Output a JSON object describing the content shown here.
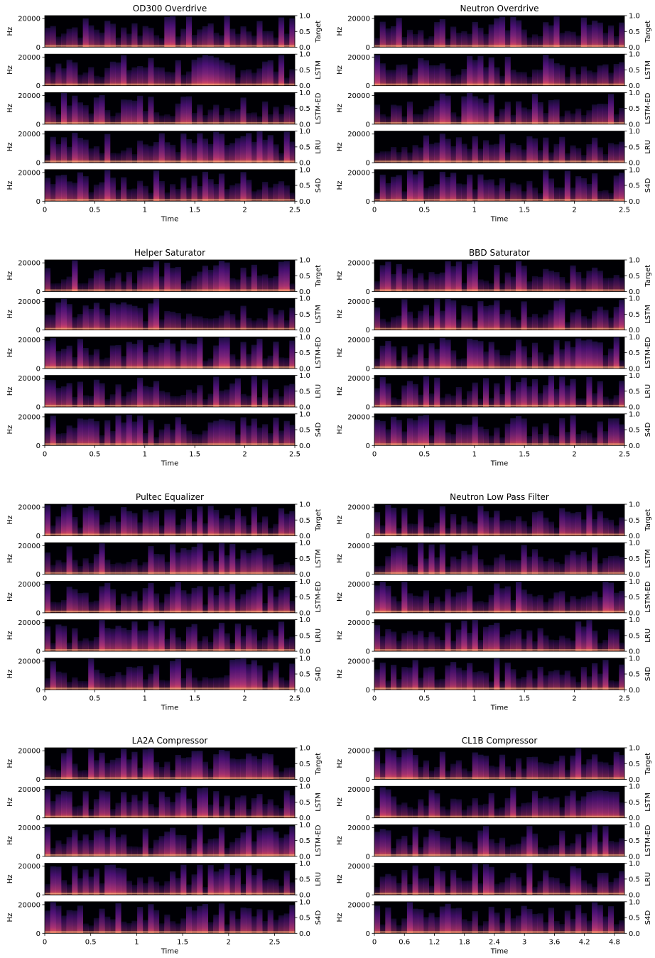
{
  "figure": {
    "row_labels": [
      "Target",
      "LSTM",
      "LSTM-ED",
      "LRU",
      "S4D"
    ],
    "freq_ticks": [
      "0",
      "20000"
    ],
    "freq_label": "Hz",
    "right_ticks": [
      "0.0",
      "0.5",
      "1.0"
    ],
    "xlabel": "Time",
    "colormap": [
      "#000004",
      "#1c1044",
      "#4f127b",
      "#812581",
      "#b5367a",
      "#e55064",
      "#fb8761",
      "#fec287",
      "#fcfdbf"
    ]
  },
  "chart_data": [
    {
      "type": "heatmap",
      "title": "OD300 Overdrive",
      "xlabel": "Time",
      "ylabel": "Hz",
      "xlim": [
        0,
        2.5
      ],
      "xticks": [
        "0",
        "0.5",
        "1",
        "1.5",
        "2",
        "2.5"
      ],
      "ylim": [
        0,
        22050
      ],
      "yticks": [
        0,
        20000
      ],
      "series": [
        {
          "name": "Target"
        },
        {
          "name": "LSTM"
        },
        {
          "name": "LSTM-ED"
        },
        {
          "name": "LRU"
        },
        {
          "name": "S4D"
        }
      ]
    },
    {
      "type": "heatmap",
      "title": "Neutron Overdrive",
      "xlabel": "Time",
      "ylabel": "Hz",
      "xlim": [
        0,
        2.5
      ],
      "xticks": [
        "0",
        "0.5",
        "1",
        "1.5",
        "2",
        "2.5"
      ],
      "ylim": [
        0,
        22050
      ],
      "yticks": [
        0,
        20000
      ],
      "series": [
        {
          "name": "Target"
        },
        {
          "name": "LSTM"
        },
        {
          "name": "LSTM-ED"
        },
        {
          "name": "LRU"
        },
        {
          "name": "S4D"
        }
      ]
    },
    {
      "type": "heatmap",
      "title": "Helper Saturator",
      "xlabel": "Time",
      "ylabel": "Hz",
      "xlim": [
        0,
        2.5
      ],
      "xticks": [
        "0",
        "0.5",
        "1",
        "1.5",
        "2",
        "2.5"
      ],
      "ylim": [
        0,
        22050
      ],
      "yticks": [
        0,
        20000
      ],
      "series": [
        {
          "name": "Target"
        },
        {
          "name": "LSTM"
        },
        {
          "name": "LSTM-ED"
        },
        {
          "name": "LRU"
        },
        {
          "name": "S4D"
        }
      ]
    },
    {
      "type": "heatmap",
      "title": "BBD Saturator",
      "xlabel": "Time",
      "ylabel": "Hz",
      "xlim": [
        0,
        2.5
      ],
      "xticks": [
        "0",
        "0.5",
        "1",
        "1.5",
        "2",
        "2.5"
      ],
      "ylim": [
        0,
        22050
      ],
      "yticks": [
        0,
        20000
      ],
      "series": [
        {
          "name": "Target"
        },
        {
          "name": "LSTM"
        },
        {
          "name": "LSTM-ED"
        },
        {
          "name": "LRU"
        },
        {
          "name": "S4D"
        }
      ]
    },
    {
      "type": "heatmap",
      "title": "Pultec Equalizer",
      "xlabel": "Time",
      "ylabel": "Hz",
      "xlim": [
        0,
        2.5
      ],
      "xticks": [
        "0",
        "0.5",
        "1",
        "1.5",
        "2",
        "2.5"
      ],
      "ylim": [
        0,
        22050
      ],
      "yticks": [
        0,
        20000
      ],
      "series": [
        {
          "name": "Target"
        },
        {
          "name": "LSTM"
        },
        {
          "name": "LSTM-ED"
        },
        {
          "name": "LRU"
        },
        {
          "name": "S4D"
        }
      ]
    },
    {
      "type": "heatmap",
      "title": "Neutron Low Pass Filter",
      "xlabel": "Time",
      "ylabel": "Hz",
      "xlim": [
        0,
        2.5
      ],
      "xticks": [
        "0",
        "0.5",
        "1",
        "1.5",
        "2",
        "2.5"
      ],
      "ylim": [
        0,
        22050
      ],
      "yticks": [
        0,
        20000
      ],
      "series": [
        {
          "name": "Target"
        },
        {
          "name": "LSTM"
        },
        {
          "name": "LSTM-ED"
        },
        {
          "name": "LRU"
        },
        {
          "name": "S4D"
        }
      ]
    },
    {
      "type": "heatmap",
      "title": "LA2A Compressor",
      "xlabel": "Time",
      "ylabel": "Hz",
      "xlim": [
        0,
        2.72
      ],
      "xticks": [
        "0",
        "0.5",
        "1",
        "1.5",
        "2",
        "2.5"
      ],
      "ylim": [
        0,
        22050
      ],
      "yticks": [
        0,
        20000
      ],
      "series": [
        {
          "name": "Target"
        },
        {
          "name": "LSTM"
        },
        {
          "name": "LSTM-ED"
        },
        {
          "name": "LRU"
        },
        {
          "name": "S4D"
        }
      ]
    },
    {
      "type": "heatmap",
      "title": "CL1B Compressor",
      "xlabel": "Time",
      "ylabel": "Hz",
      "xlim": [
        0,
        5.0
      ],
      "xticks": [
        "0",
        "0.6",
        "1.2",
        "1.8",
        "2.4",
        "3",
        "3.6",
        "4.2",
        "4.8"
      ],
      "ylim": [
        0,
        22050
      ],
      "yticks": [
        0,
        20000
      ],
      "series": [
        {
          "name": "Target"
        },
        {
          "name": "LSTM"
        },
        {
          "name": "LSTM-ED"
        },
        {
          "name": "LRU"
        },
        {
          "name": "S4D"
        }
      ]
    }
  ]
}
